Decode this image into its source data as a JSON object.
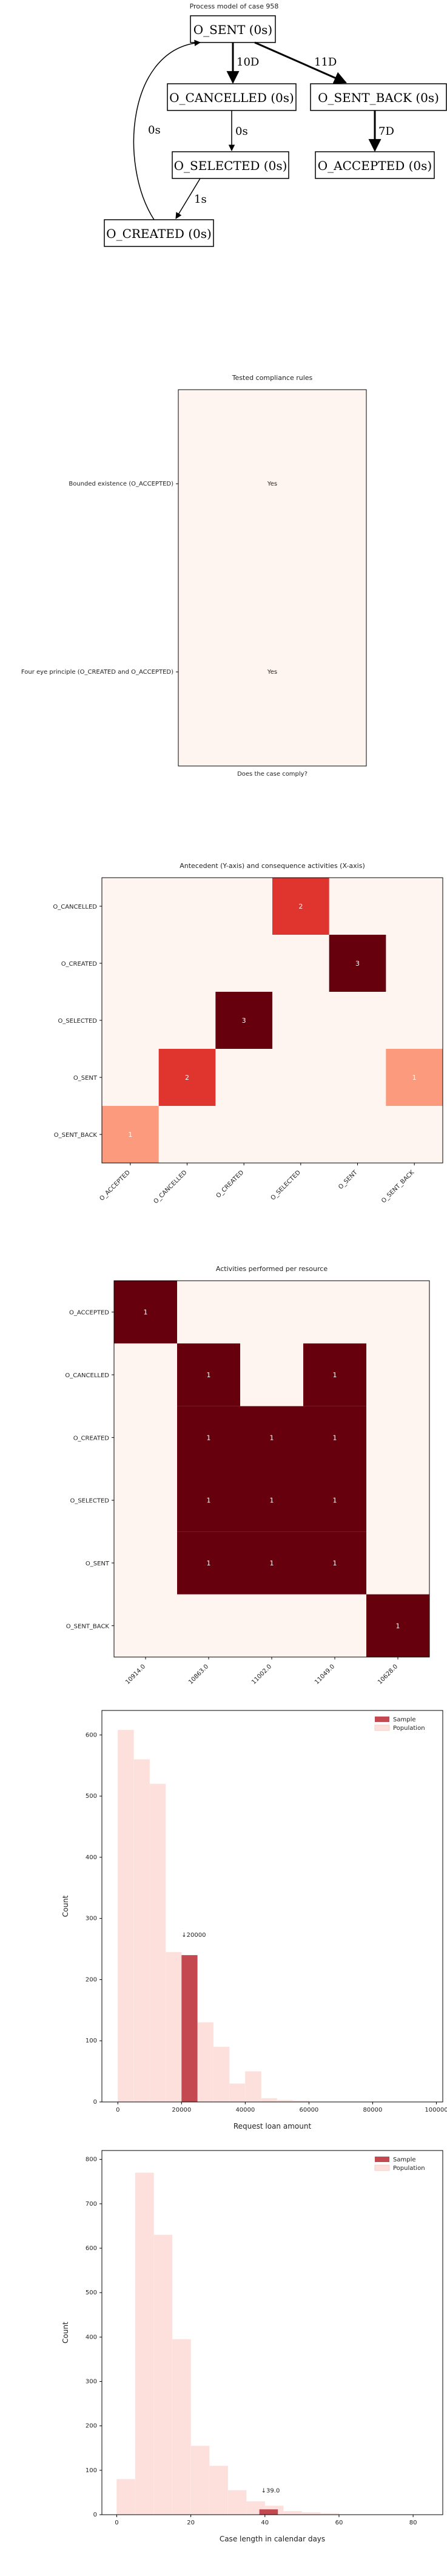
{
  "process_model": {
    "title": "Process model of case 958",
    "nodes": [
      {
        "id": "O_SENT",
        "label": "O_SENT (0s)"
      },
      {
        "id": "O_CANCELLED",
        "label": "O_CANCELLED (0s)"
      },
      {
        "id": "O_SENT_BACK",
        "label": "O_SENT_BACK (0s)"
      },
      {
        "id": "O_SELECTED",
        "label": "O_SELECTED (0s)"
      },
      {
        "id": "O_ACCEPTED",
        "label": "O_ACCEPTED (0s)"
      },
      {
        "id": "O_CREATED",
        "label": "O_CREATED (0s)"
      }
    ],
    "edges": [
      {
        "from": "O_SENT",
        "to": "O_CANCELLED",
        "label": "10D"
      },
      {
        "from": "O_SENT",
        "to": "O_SENT_BACK",
        "label": "11D"
      },
      {
        "from": "O_CANCELLED",
        "to": "O_SELECTED",
        "label": "0s"
      },
      {
        "from": "O_SENT_BACK",
        "to": "O_ACCEPTED",
        "label": "7D"
      },
      {
        "from": "O_SELECTED",
        "to": "O_CREATED",
        "label": "1s"
      },
      {
        "from": "O_CREATED",
        "to": "O_SENT",
        "label": "0s"
      }
    ]
  },
  "chart_data": [
    {
      "type": "table",
      "title": "Tested compliance rules",
      "xlabel": "Does the case comply?",
      "rules": [
        "Bounded existence (O_ACCEPTED)",
        "Four eye principle (O_CREATED and O_ACCEPTED)"
      ],
      "values": [
        "Yes",
        "Yes"
      ],
      "colors": {
        "background": "#fff5f0",
        "text": "#4a5aa8"
      }
    },
    {
      "type": "heatmap",
      "title": "Antecedent (Y-axis) and consequence activities (X-axis)",
      "rows": [
        "O_CANCELLED",
        "O_CREATED",
        "O_SELECTED",
        "O_SENT",
        "O_SENT_BACK"
      ],
      "cols": [
        "O_ACCEPTED",
        "O_CANCELLED",
        "O_CREATED",
        "O_SELECTED",
        "O_SENT",
        "O_SENT_BACK"
      ],
      "cells": [
        {
          "row": "O_CANCELLED",
          "col": "O_SELECTED",
          "value": 2
        },
        {
          "row": "O_CREATED",
          "col": "O_SENT",
          "value": 3
        },
        {
          "row": "O_SELECTED",
          "col": "O_CREATED",
          "value": 3
        },
        {
          "row": "O_SENT",
          "col": "O_CANCELLED",
          "value": 2
        },
        {
          "row": "O_SENT",
          "col": "O_SENT_BACK",
          "value": 1
        },
        {
          "row": "O_SENT_BACK",
          "col": "O_ACCEPTED",
          "value": 1
        }
      ],
      "cell_colors": [
        {
          "row": "O_CANCELLED",
          "col": "O_SELECTED",
          "color": "#e0352f"
        },
        {
          "row": "O_CREATED",
          "col": "O_SENT",
          "color": "#67000d"
        },
        {
          "row": "O_SELECTED",
          "col": "O_CREATED",
          "color": "#67000d"
        },
        {
          "row": "O_SENT",
          "col": "O_CANCELLED",
          "color": "#e0352f"
        },
        {
          "row": "O_SENT",
          "col": "O_SENT_BACK",
          "color": "#fc9a7e"
        },
        {
          "row": "O_SENT_BACK",
          "col": "O_ACCEPTED",
          "color": "#fc9a7e"
        }
      ],
      "colors": {
        "empty": "#fff5f0"
      }
    },
    {
      "type": "heatmap",
      "title": "Activities performed per resource",
      "rows": [
        "O_ACCEPTED",
        "O_CANCELLED",
        "O_CREATED",
        "O_SELECTED",
        "O_SENT",
        "O_SENT_BACK"
      ],
      "cols": [
        "10914.0",
        "10863.0",
        "11002.0",
        "11049.0",
        "10628.0"
      ],
      "cells": [
        {
          "row": "O_ACCEPTED",
          "col": "10914.0",
          "value": 1
        },
        {
          "row": "O_CANCELLED",
          "col": "10863.0",
          "value": 1
        },
        {
          "row": "O_CANCELLED",
          "col": "11049.0",
          "value": 1
        },
        {
          "row": "O_CREATED",
          "col": "10863.0",
          "value": 1
        },
        {
          "row": "O_CREATED",
          "col": "11002.0",
          "value": 1
        },
        {
          "row": "O_CREATED",
          "col": "11049.0",
          "value": 1
        },
        {
          "row": "O_SELECTED",
          "col": "10863.0",
          "value": 1
        },
        {
          "row": "O_SELECTED",
          "col": "11002.0",
          "value": 1
        },
        {
          "row": "O_SELECTED",
          "col": "11049.0",
          "value": 1
        },
        {
          "row": "O_SENT",
          "col": "10863.0",
          "value": 1
        },
        {
          "row": "O_SENT",
          "col": "11002.0",
          "value": 1
        },
        {
          "row": "O_SENT",
          "col": "11049.0",
          "value": 1
        },
        {
          "row": "O_SENT_BACK",
          "col": "10628.0",
          "value": 1
        }
      ],
      "colors": {
        "filled": "#67000d",
        "empty": "#fff5f0"
      }
    },
    {
      "type": "bar",
      "title": "",
      "xlabel": "Request loan amount",
      "ylabel": "Count",
      "xlim": [
        -5000,
        102000
      ],
      "ylim": [
        0,
        640
      ],
      "xticks": [
        0,
        20000,
        40000,
        60000,
        80000,
        100000
      ],
      "yticks": [
        0,
        100,
        200,
        300,
        400,
        500,
        600
      ],
      "series": [
        {
          "name": "Population",
          "color": "#fde0dc",
          "bins": [
            {
              "x0": 0,
              "x1": 5000,
              "value": 608
            },
            {
              "x0": 5000,
              "x1": 10000,
              "value": 560
            },
            {
              "x0": 10000,
              "x1": 15000,
              "value": 520
            },
            {
              "x0": 15000,
              "x1": 20000,
              "value": 245
            },
            {
              "x0": 20000,
              "x1": 25000,
              "value": 240
            },
            {
              "x0": 25000,
              "x1": 30000,
              "value": 130
            },
            {
              "x0": 30000,
              "x1": 35000,
              "value": 90
            },
            {
              "x0": 35000,
              "x1": 40000,
              "value": 30
            },
            {
              "x0": 40000,
              "x1": 45000,
              "value": 50
            },
            {
              "x0": 45000,
              "x1": 50000,
              "value": 6
            },
            {
              "x0": 50000,
              "x1": 55000,
              "value": 3
            },
            {
              "x0": 55000,
              "x1": 60000,
              "value": 2
            }
          ]
        },
        {
          "name": "Sample",
          "color": "#c4484f",
          "bins": [
            {
              "x0": 20000,
              "x1": 25000,
              "value": 240
            }
          ]
        }
      ],
      "annotation": {
        "text": "↓20000",
        "x": 20000,
        "y": 270
      },
      "legend": "top-right"
    },
    {
      "type": "bar",
      "title": "",
      "xlabel": "Case length in calendar days",
      "ylabel": "Count",
      "xlim": [
        -4,
        88
      ],
      "ylim": [
        0,
        820
      ],
      "xticks": [
        0,
        20,
        40,
        60,
        80
      ],
      "yticks": [
        0,
        100,
        200,
        300,
        400,
        500,
        600,
        700,
        800
      ],
      "series": [
        {
          "name": "Population",
          "color": "#fde0dc",
          "bins": [
            {
              "x0": 0,
              "x1": 5,
              "value": 80
            },
            {
              "x0": 5,
              "x1": 10,
              "value": 770
            },
            {
              "x0": 10,
              "x1": 15,
              "value": 630
            },
            {
              "x0": 15,
              "x1": 20,
              "value": 395
            },
            {
              "x0": 20,
              "x1": 25,
              "value": 155
            },
            {
              "x0": 25,
              "x1": 30,
              "value": 110
            },
            {
              "x0": 30,
              "x1": 35,
              "value": 55
            },
            {
              "x0": 35,
              "x1": 40,
              "value": 30
            },
            {
              "x0": 40,
              "x1": 45,
              "value": 20
            },
            {
              "x0": 45,
              "x1": 50,
              "value": 8
            },
            {
              "x0": 50,
              "x1": 55,
              "value": 5
            },
            {
              "x0": 55,
              "x1": 60,
              "value": 3
            }
          ]
        },
        {
          "name": "Sample",
          "color": "#c4484f",
          "bins": [
            {
              "x0": 38.5,
              "x1": 43.5,
              "value": 12
            }
          ]
        }
      ],
      "annotation": {
        "text": "↓39.0",
        "x": 39,
        "y": 50
      },
      "legend": "top-right"
    }
  ]
}
